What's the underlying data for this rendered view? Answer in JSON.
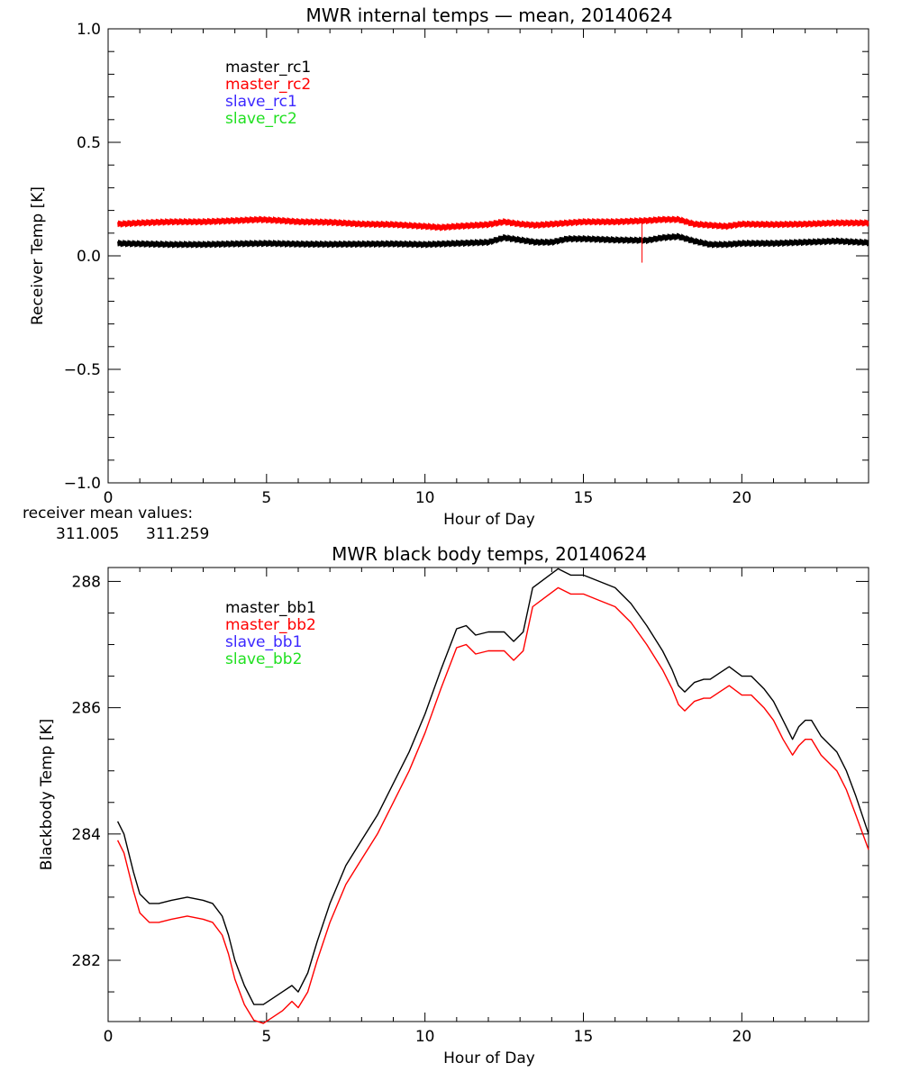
{
  "colors": {
    "black": "#000000",
    "red": "#ff0000",
    "blue": "#3c28ff",
    "green": "#21e021"
  },
  "chart_data": [
    {
      "type": "line",
      "title": "MWR internal temps — mean, 20140624",
      "xlabel": "Hour of Day",
      "ylabel": "Receiver Temp [K]",
      "xlim": [
        0,
        24
      ],
      "ylim": [
        -1.0,
        1.0
      ],
      "xticks": [
        0,
        5,
        10,
        15,
        20
      ],
      "yticks": [
        -1.0,
        -0.5,
        0.0,
        0.5,
        1.0
      ],
      "ytick_labels": [
        "−1.0",
        "−0.5",
        "0.0",
        "0.5",
        "1.0"
      ],
      "legend_position": "top-left",
      "legend": [
        "master_rc1",
        "master_rc2",
        "slave_rc1",
        "slave_rc2"
      ],
      "legend_colors": [
        "#000000",
        "#ff0000",
        "#3c28ff",
        "#21e021"
      ],
      "footnote": {
        "label": "receiver mean values:",
        "values": [
          "311.005",
          "311.259"
        ],
        "value_colors": [
          "#000000",
          "#ff0000"
        ]
      },
      "series": [
        {
          "color": "#000000",
          "x": [
            0.3,
            1,
            2,
            3,
            4,
            5,
            6,
            7,
            8,
            9,
            10,
            11,
            12,
            12.5,
            13,
            13.5,
            14,
            14.5,
            15,
            16,
            17,
            17.5,
            18,
            18.5,
            19,
            19.5,
            20,
            21,
            22,
            23,
            24
          ],
          "y": [
            0.055,
            0.053,
            0.05,
            0.05,
            0.053,
            0.055,
            0.052,
            0.051,
            0.052,
            0.053,
            0.05,
            0.055,
            0.06,
            0.08,
            0.07,
            0.06,
            0.06,
            0.075,
            0.075,
            0.07,
            0.068,
            0.08,
            0.085,
            0.065,
            0.05,
            0.05,
            0.055,
            0.055,
            0.06,
            0.065,
            0.058
          ]
        },
        {
          "color": "#ff0000",
          "x": [
            0.3,
            1,
            2,
            3,
            4,
            4.8,
            5.5,
            6,
            7,
            8,
            9,
            10,
            10.5,
            11,
            12,
            12.5,
            13,
            13.5,
            14,
            15,
            16,
            17,
            17.5,
            18,
            18.5,
            19,
            19.5,
            20,
            21,
            22,
            23,
            24
          ],
          "y": [
            0.14,
            0.145,
            0.15,
            0.15,
            0.155,
            0.16,
            0.155,
            0.15,
            0.148,
            0.14,
            0.138,
            0.13,
            0.125,
            0.13,
            0.138,
            0.15,
            0.14,
            0.135,
            0.14,
            0.15,
            0.15,
            0.155,
            0.16,
            0.16,
            0.14,
            0.135,
            0.13,
            0.14,
            0.138,
            0.14,
            0.145,
            0.145
          ]
        }
      ],
      "spike": {
        "x": 16.85,
        "y_low": -0.03,
        "y_high": 0.15,
        "color": "#ff0000"
      }
    },
    {
      "type": "line",
      "title": "MWR black body temps, 20140624",
      "xlabel": "Hour of Day",
      "ylabel": "Blackbody Temp [K]",
      "xlim": [
        0,
        24
      ],
      "ylim": [
        281.03,
        288.22
      ],
      "xticks": [
        0,
        5,
        10,
        15,
        20
      ],
      "yticks": [
        282,
        284,
        286,
        288
      ],
      "ytick_labels": [
        "282",
        "284",
        "286",
        "288"
      ],
      "legend_position": "top-left",
      "legend": [
        "master_bb1",
        "master_bb2",
        "slave_bb1",
        "slave_bb2"
      ],
      "legend_colors": [
        "#000000",
        "#ff0000",
        "#3c28ff",
        "#21e021"
      ],
      "series": [
        {
          "color": "#000000",
          "x": [
            0.3,
            0.5,
            0.8,
            1.0,
            1.3,
            1.6,
            2.0,
            2.5,
            3.0,
            3.3,
            3.6,
            3.8,
            4.0,
            4.3,
            4.6,
            4.9,
            5.2,
            5.5,
            5.8,
            6.0,
            6.3,
            6.6,
            7.0,
            7.5,
            8.0,
            8.5,
            9.0,
            9.5,
            10.0,
            10.5,
            11.0,
            11.3,
            11.6,
            12.0,
            12.5,
            12.8,
            13.1,
            13.4,
            13.8,
            14.2,
            14.6,
            15.0,
            15.5,
            16.0,
            16.5,
            17.0,
            17.5,
            17.8,
            18.0,
            18.2,
            18.5,
            18.8,
            19.0,
            19.3,
            19.6,
            20.0,
            20.3,
            20.7,
            21.0,
            21.3,
            21.6,
            21.8,
            22.0,
            22.2,
            22.5,
            22.8,
            23.0,
            23.3,
            23.6,
            24.0
          ],
          "y": [
            284.2,
            284.0,
            283.4,
            283.05,
            282.9,
            282.9,
            282.95,
            283.0,
            282.95,
            282.9,
            282.7,
            282.4,
            282.0,
            281.6,
            281.3,
            281.3,
            281.4,
            281.5,
            281.6,
            281.5,
            281.8,
            282.3,
            282.9,
            283.5,
            283.9,
            284.3,
            284.8,
            285.3,
            285.9,
            286.6,
            287.25,
            287.3,
            287.15,
            287.2,
            287.2,
            287.05,
            287.2,
            287.9,
            288.05,
            288.2,
            288.1,
            288.1,
            288.0,
            287.9,
            287.65,
            287.3,
            286.9,
            286.6,
            286.35,
            286.25,
            286.4,
            286.45,
            286.45,
            286.55,
            286.65,
            286.5,
            286.5,
            286.3,
            286.1,
            285.8,
            285.5,
            285.7,
            285.8,
            285.8,
            285.55,
            285.4,
            285.3,
            285.0,
            284.6,
            284.0
          ]
        },
        {
          "color": "#ff0000",
          "x": [
            0.3,
            0.5,
            0.8,
            1.0,
            1.3,
            1.6,
            2.0,
            2.5,
            3.0,
            3.3,
            3.6,
            3.8,
            4.0,
            4.3,
            4.6,
            4.9,
            5.2,
            5.5,
            5.8,
            6.0,
            6.3,
            6.6,
            7.0,
            7.5,
            8.0,
            8.5,
            9.0,
            9.5,
            10.0,
            10.5,
            11.0,
            11.3,
            11.6,
            12.0,
            12.5,
            12.8,
            13.1,
            13.4,
            13.8,
            14.2,
            14.6,
            15.0,
            15.5,
            16.0,
            16.5,
            17.0,
            17.5,
            17.8,
            18.0,
            18.2,
            18.5,
            18.8,
            19.0,
            19.3,
            19.6,
            20.0,
            20.3,
            20.7,
            21.0,
            21.3,
            21.6,
            21.8,
            22.0,
            22.2,
            22.5,
            22.8,
            23.0,
            23.3,
            23.6,
            24.0
          ],
          "y": [
            283.9,
            283.7,
            283.1,
            282.75,
            282.6,
            282.6,
            282.65,
            282.7,
            282.65,
            282.6,
            282.4,
            282.1,
            281.7,
            281.3,
            281.05,
            281.0,
            281.1,
            281.2,
            281.35,
            281.25,
            281.5,
            282.0,
            282.6,
            283.2,
            283.6,
            284.0,
            284.5,
            285.0,
            285.6,
            286.3,
            286.95,
            287.0,
            286.85,
            286.9,
            286.9,
            286.75,
            286.9,
            287.6,
            287.75,
            287.9,
            287.8,
            287.8,
            287.7,
            287.6,
            287.35,
            287.0,
            286.6,
            286.3,
            286.05,
            285.95,
            286.1,
            286.15,
            286.15,
            286.25,
            286.35,
            286.2,
            286.2,
            286.0,
            285.8,
            285.5,
            285.25,
            285.4,
            285.5,
            285.5,
            285.25,
            285.1,
            285.0,
            284.7,
            284.3,
            283.75
          ]
        }
      ]
    }
  ]
}
